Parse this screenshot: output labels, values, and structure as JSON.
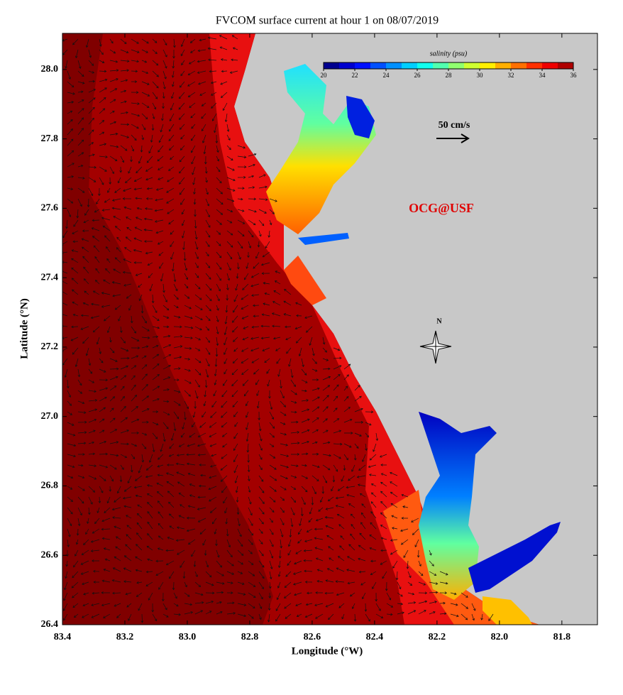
{
  "map": {
    "title": "FVCOM surface current at hour 1 on 08/07/2019",
    "xlabel": "Longitude (°W)",
    "ylabel": "Latitude (°N)",
    "xlim": [
      83.4,
      81.686
    ],
    "ylim": [
      26.4,
      28.104
    ],
    "xticks": [
      83.4,
      83.2,
      {
        "value": 83,
        "label": "83.0"
      },
      82.8,
      82.6,
      82.4,
      82.2,
      {
        "value": 82,
        "label": "82.0"
      },
      81.8
    ],
    "yticks": [
      26.4,
      26.6,
      26.8,
      {
        "value": 27,
        "label": "27.0"
      },
      27.2,
      27.4,
      27.6,
      27.8,
      {
        "value": 28,
        "label": "28.0"
      }
    ],
    "colorbar": {
      "title": "salinity (psu)",
      "lim": [
        20,
        36
      ],
      "ticks": [
        20,
        22,
        24,
        26,
        28,
        30,
        32,
        34,
        36
      ],
      "colors": [
        "#00008f",
        "#0000cf",
        "#0010ff",
        "#0050ff",
        "#0090ff",
        "#00cfff",
        "#10ffef",
        "#50ffaf",
        "#90ff6f",
        "#cfff30",
        "#ffef00",
        "#ffaf00",
        "#ff7000",
        "#ff3000",
        "#ef0000",
        "#af0000"
      ]
    },
    "scale_label": "50 cm/s",
    "credit": "OCG@USF",
    "compass": "N"
  }
}
